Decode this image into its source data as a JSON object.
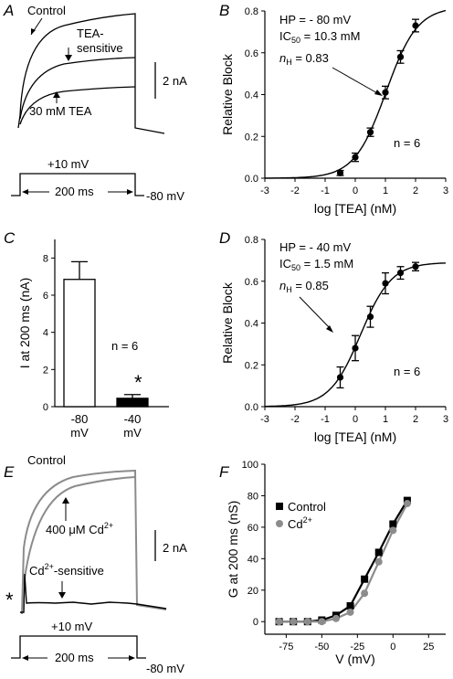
{
  "panels": {
    "A": {
      "letter": "A",
      "control_label": "Control",
      "tea_sensitive_label_1": "TEA-",
      "tea_sensitive_label_2": "sensitive",
      "tea_label": "30 mM TEA",
      "scale_label": "2 nA",
      "step_label": "+10 mV",
      "duration_label": "200 ms",
      "holding_label": "-80 mV"
    },
    "B": {
      "letter": "B",
      "annot_hp": "HP = - 80 mV",
      "annot_ic_prefix": "IC",
      "annot_ic_sub": "50",
      "annot_ic_value": " = 10.3 mM",
      "annot_nh_n": "n",
      "annot_nh_sub": "H",
      "annot_nh_value": " = 0.83",
      "n_label": "n = 6"
    },
    "C": {
      "letter": "C",
      "n_label": "n = 6",
      "sig_label": "*"
    },
    "D": {
      "letter": "D",
      "annot_hp": "HP = - 40 mV",
      "annot_ic_prefix": "IC",
      "annot_ic_sub": "50",
      "annot_ic_value": " = 1.5 mM",
      "annot_nh_n": "n",
      "annot_nh_sub": "H",
      "annot_nh_value": " = 0.85",
      "n_label": "n = 6"
    },
    "E": {
      "letter": "E",
      "control_label": "Control",
      "cd_label_prefix": "400 ",
      "cd_label_mu": "μM Cd",
      "cd_label_sup": "2+",
      "cd_sensitive_prefix": "Cd",
      "cd_sensitive_sup": "2+",
      "cd_sensitive_suffix": "-sensitive",
      "scale_label": "2 nA",
      "artifact_label": "*",
      "step_label": "+10 mV",
      "duration_label": "200 ms",
      "holding_label": "-80 mV"
    },
    "F": {
      "letter": "F"
    }
  },
  "colors": {
    "black": "#000000",
    "gray": "#8c8c8c"
  },
  "chart_data": [
    {
      "panel": "B",
      "type": "scatter",
      "xlabel": "log [TEA] (nM)",
      "ylabel": "Relative Block",
      "xlim": [
        -3,
        3
      ],
      "ylim": [
        0,
        0.8
      ],
      "xticks": [
        -3,
        -2,
        -1,
        0,
        1,
        2,
        3
      ],
      "yticks": [
        0.0,
        0.2,
        0.4,
        0.6,
        0.8
      ],
      "xtick_labels": [
        "-3",
        "-2",
        "-1",
        "0",
        "1",
        "2",
        "3"
      ],
      "ytick_labels": [
        "0.0",
        "0.2",
        "0.4",
        "0.6",
        "0.8"
      ],
      "points": [
        {
          "x": -0.5,
          "y": 0.025,
          "err": 0.012
        },
        {
          "x": 0.0,
          "y": 0.1,
          "err": 0.02
        },
        {
          "x": 0.5,
          "y": 0.22,
          "err": 0.02
        },
        {
          "x": 1.0,
          "y": 0.41,
          "err": 0.03
        },
        {
          "x": 1.5,
          "y": 0.58,
          "err": 0.03
        },
        {
          "x": 2.0,
          "y": 0.73,
          "err": 0.03
        }
      ],
      "fit": {
        "top": 0.82,
        "logIC50": 1.013,
        "nH": 0.83
      }
    },
    {
      "panel": "C",
      "type": "bar",
      "ylabel": "I at 200 ms (nA)",
      "ylim": [
        0,
        9
      ],
      "yticks": [
        0,
        2,
        4,
        6,
        8
      ],
      "ytick_labels": [
        "0",
        "2",
        "4",
        "6",
        "8"
      ],
      "categories": [
        [
          "-80",
          "mV"
        ],
        [
          "-40",
          "mV"
        ]
      ],
      "values": [
        6.85,
        0.45
      ],
      "errors": [
        0.95,
        0.2
      ],
      "fills": [
        "#ffffff",
        "#000000"
      ]
    },
    {
      "panel": "D",
      "type": "scatter",
      "xlabel": "log [TEA] (nM)",
      "ylabel": "Relative Block",
      "xlim": [
        -3,
        3
      ],
      "ylim": [
        0,
        0.8
      ],
      "xticks": [
        -3,
        -2,
        -1,
        0,
        1,
        2,
        3
      ],
      "yticks": [
        0.0,
        0.2,
        0.4,
        0.6,
        0.8
      ],
      "xtick_labels": [
        "-3",
        "-2",
        "-1",
        "0",
        "1",
        "2",
        "3"
      ],
      "ytick_labels": [
        "0.0",
        "0.2",
        "0.4",
        "0.6",
        "0.8"
      ],
      "points": [
        {
          "x": -0.5,
          "y": 0.14,
          "err": 0.05
        },
        {
          "x": 0.0,
          "y": 0.28,
          "err": 0.06
        },
        {
          "x": 0.5,
          "y": 0.43,
          "err": 0.05
        },
        {
          "x": 1.0,
          "y": 0.59,
          "err": 0.05
        },
        {
          "x": 1.5,
          "y": 0.64,
          "err": 0.03
        },
        {
          "x": 2.0,
          "y": 0.67,
          "err": 0.02
        }
      ],
      "fit": {
        "top": 0.69,
        "logIC50": 0.176,
        "nH": 0.85
      }
    },
    {
      "panel": "F",
      "type": "line",
      "ylabel": "G at 200 ms (nS)",
      "xlabel": "V (mV)",
      "xlim": [
        -90,
        37
      ],
      "ylim": [
        -8,
        100
      ],
      "xticks": [
        -75,
        -50,
        -25,
        0,
        25
      ],
      "yticks": [
        0,
        20,
        40,
        60,
        80,
        100
      ],
      "xtick_labels": [
        "-75",
        "-50",
        "-25",
        "0",
        "25"
      ],
      "ytick_labels": [
        "0",
        "20",
        "40",
        "60",
        "80",
        "100"
      ],
      "series": [
        {
          "name": "Control",
          "marker": "square",
          "color": "#000000",
          "x": [
            -80,
            -70,
            -60,
            -50,
            -40,
            -30,
            -20,
            -10,
            0,
            10
          ],
          "y": [
            0,
            0,
            0,
            1,
            4,
            10,
            27,
            44,
            62,
            77
          ]
        },
        {
          "name": "Cd2+",
          "marker": "circle",
          "color": "#8c8c8c",
          "x": [
            -80,
            -70,
            -60,
            -50,
            -40,
            -30,
            -20,
            -10,
            0,
            10
          ],
          "y": [
            0,
            0,
            0,
            0,
            2,
            6,
            18,
            38,
            58,
            75
          ]
        }
      ],
      "legend": [
        {
          "label": "Control",
          "sup": ""
        },
        {
          "label": "Cd",
          "sup": "2+"
        }
      ]
    }
  ]
}
